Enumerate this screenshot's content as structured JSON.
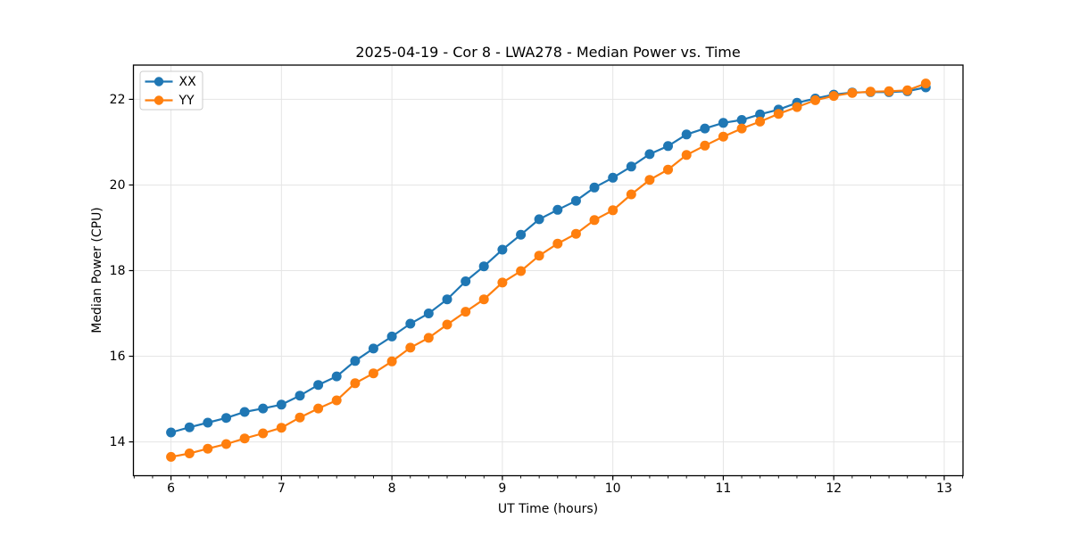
{
  "chart_data": {
    "type": "line",
    "title": "2025-04-19 - Cor 8 - LWA278 - Median Power vs. Time",
    "xlabel": "UT Time (hours)",
    "ylabel": "Median Power (CPU)",
    "xlim": [
      5.66,
      13.17
    ],
    "ylim": [
      13.21,
      22.8
    ],
    "x_ticks": [
      6,
      7,
      8,
      9,
      10,
      11,
      12,
      13
    ],
    "y_ticks": [
      14,
      16,
      18,
      20,
      22
    ],
    "x_minor_step": 0.166667,
    "grid": true,
    "legend_position": "upper-left",
    "x": [
      6.0,
      6.167,
      6.333,
      6.5,
      6.667,
      6.833,
      7.0,
      7.167,
      7.333,
      7.5,
      7.667,
      7.833,
      8.0,
      8.167,
      8.333,
      8.5,
      8.667,
      8.833,
      9.0,
      9.167,
      9.333,
      9.5,
      9.667,
      9.833,
      10.0,
      10.167,
      10.333,
      10.5,
      10.667,
      10.833,
      11.0,
      11.167,
      11.333,
      11.5,
      11.667,
      11.833,
      12.0,
      12.167,
      12.333,
      12.5,
      12.667,
      12.833
    ],
    "series": [
      {
        "name": "XX",
        "color": "#1f77b4",
        "values": [
          14.22,
          14.34,
          14.45,
          14.56,
          14.7,
          14.78,
          14.87,
          15.08,
          15.33,
          15.53,
          15.89,
          16.18,
          16.46,
          16.76,
          17.0,
          17.33,
          17.75,
          18.1,
          18.49,
          18.84,
          19.2,
          19.42,
          19.63,
          19.94,
          20.17,
          20.43,
          20.72,
          20.91,
          21.18,
          21.32,
          21.45,
          21.52,
          21.65,
          21.76,
          21.92,
          22.02,
          22.11,
          22.16,
          22.17,
          22.17,
          22.19,
          22.28
        ]
      },
      {
        "name": "YY",
        "color": "#ff7f0e",
        "values": [
          13.65,
          13.73,
          13.84,
          13.95,
          14.08,
          14.2,
          14.33,
          14.57,
          14.78,
          14.97,
          15.37,
          15.6,
          15.88,
          16.2,
          16.43,
          16.74,
          17.04,
          17.33,
          17.72,
          17.99,
          18.35,
          18.63,
          18.86,
          19.18,
          19.41,
          19.78,
          20.12,
          20.36,
          20.7,
          20.92,
          21.13,
          21.32,
          21.48,
          21.66,
          21.82,
          21.98,
          22.08,
          22.15,
          22.18,
          22.19,
          22.21,
          22.37
        ]
      }
    ],
    "colors": {
      "grid": "#e5e5e5",
      "spine": "#000000",
      "series_xx": "#1f77b4",
      "series_yy": "#ff7f0e"
    }
  }
}
